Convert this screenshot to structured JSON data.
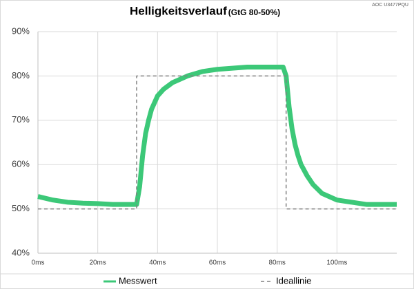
{
  "chart_data": {
    "type": "line",
    "title": "Helligkeitsverlauf",
    "subtitle": "(GtG 80-50%)",
    "annotation": "AOC U3477PQU",
    "xlim": [
      0,
      120
    ],
    "xticks": [
      {
        "value": 0,
        "label": "0ms"
      },
      {
        "value": 20,
        "label": "20ms"
      },
      {
        "value": 40,
        "label": "40ms"
      },
      {
        "value": 60,
        "label": "60ms"
      },
      {
        "value": 80,
        "label": "80ms"
      },
      {
        "value": 100,
        "label": "100ms"
      }
    ],
    "ylim": [
      40,
      90
    ],
    "yticks": [
      {
        "value": 40,
        "label": "40%"
      },
      {
        "value": 50,
        "label": "50%"
      },
      {
        "value": 60,
        "label": "60%"
      },
      {
        "value": 70,
        "label": "70%"
      },
      {
        "value": 80,
        "label": "80%"
      },
      {
        "value": 90,
        "label": "90%"
      }
    ],
    "grid": true,
    "legend": "bottom",
    "series": [
      {
        "name": "Messwert",
        "color": "#3cc878",
        "style": "solid",
        "x": [
          0,
          5,
          10,
          15,
          20,
          25,
          30,
          33,
          34,
          35,
          36,
          37,
          38,
          39,
          40,
          42,
          45,
          50,
          55,
          60,
          70,
          80,
          82,
          83,
          84,
          85,
          86,
          87,
          88,
          90,
          92,
          95,
          100,
          105,
          110,
          120
        ],
        "values": [
          52.8,
          52,
          51.5,
          51.3,
          51.2,
          51,
          51,
          51,
          55,
          62,
          67,
          70,
          72.5,
          74,
          75.5,
          77,
          78.5,
          80,
          81,
          81.5,
          82,
          82,
          82,
          80,
          73,
          68,
          64.5,
          62,
          60,
          57.5,
          55.5,
          53.5,
          52,
          51.5,
          51,
          51
        ]
      },
      {
        "name": "Ideallinie",
        "color": "#808080",
        "style": "dashed",
        "x": [
          0,
          33,
          33,
          83,
          83,
          120
        ],
        "values": [
          50,
          50,
          80,
          80,
          50,
          50
        ]
      }
    ]
  }
}
